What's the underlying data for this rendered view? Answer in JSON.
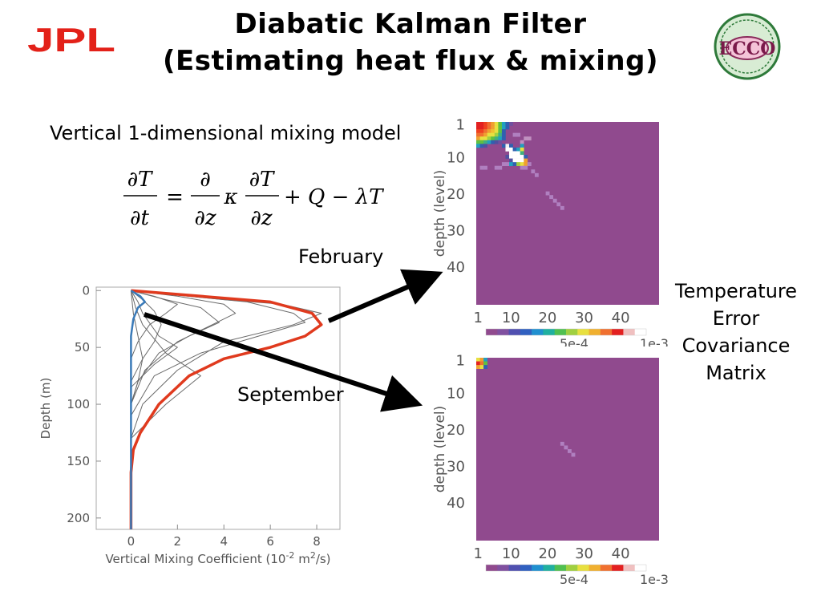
{
  "slide": {
    "title_line1": "Diabatic Kalman Filter",
    "title_line2": "(Estimating heat flux & mixing)",
    "subtitle": "Vertical 1-dimensional mixing model",
    "logo_left": "JPL",
    "logo_right": "ECCO",
    "equation": {
      "lhs_num": "∂T",
      "lhs_den": "∂t",
      "eq": "=",
      "op_num": "∂",
      "op_den": "∂z",
      "kappa": "κ",
      "rhs_num": "∂T",
      "rhs_den": "∂z",
      "tail": "+ Q − λT"
    },
    "feb_label": "February",
    "sep_label": "September",
    "cov_lines": [
      "Temperature",
      "Error",
      "Covariance",
      "Matrix"
    ],
    "colors": {
      "accent": "#e03a1e",
      "profile_blue": "#3a7ab8",
      "matrix_bg": "#904a8e",
      "jpl_red": "#e32119"
    }
  },
  "chart_data": [
    {
      "type": "line",
      "xlabel": "Vertical Mixing Coefficient (10",
      "xlabel_exp1": "-2",
      "xlabel_mid": " m",
      "xlabel_exp2": "2",
      "xlabel_end": "/s)",
      "ylabel": "Depth (m)",
      "xlim": [
        -1.5,
        9
      ],
      "ylim": [
        210,
        -3
      ],
      "xticks": [
        0,
        2,
        4,
        6,
        8
      ],
      "yticks": [
        0,
        50,
        100,
        150,
        200
      ],
      "series": [
        {
          "role": "highlight-red",
          "points": [
            [
              0,
              0
            ],
            [
              3,
              5
            ],
            [
              6,
              10
            ],
            [
              7.8,
              20
            ],
            [
              8.2,
              30
            ],
            [
              7.5,
              40
            ],
            [
              6,
              50
            ],
            [
              4,
              60
            ],
            [
              2.5,
              75
            ],
            [
              1.2,
              100
            ],
            [
              0.4,
              125
            ],
            [
              0.1,
              140
            ],
            [
              0,
              160
            ],
            [
              0,
              210
            ]
          ]
        },
        {
          "role": "highlight-blue",
          "points": [
            [
              0,
              0
            ],
            [
              0.4,
              5
            ],
            [
              0.6,
              10
            ],
            [
              0.3,
              15
            ],
            [
              0.1,
              25
            ],
            [
              0,
              40
            ],
            [
              0,
              210
            ]
          ]
        },
        {
          "role": "grey",
          "points": [
            [
              0,
              0
            ],
            [
              4,
              8
            ],
            [
              6.5,
              12
            ],
            [
              8.2,
              20
            ],
            [
              7,
              30
            ],
            [
              4,
              45
            ],
            [
              2,
              70
            ],
            [
              0.5,
              100
            ],
            [
              0,
              130
            ]
          ]
        },
        {
          "role": "grey",
          "points": [
            [
              0,
              0
            ],
            [
              2,
              5
            ],
            [
              4,
              12
            ],
            [
              4.5,
              20
            ],
            [
              3.5,
              30
            ],
            [
              2,
              45
            ],
            [
              0.6,
              70
            ],
            [
              0,
              100
            ]
          ]
        },
        {
          "role": "grey",
          "points": [
            [
              0,
              0
            ],
            [
              1,
              5
            ],
            [
              2,
              12
            ],
            [
              1.5,
              20
            ],
            [
              0.8,
              30
            ],
            [
              0.3,
              45
            ],
            [
              0,
              60
            ]
          ]
        },
        {
          "role": "grey",
          "points": [
            [
              0,
              0
            ],
            [
              1.5,
              8
            ],
            [
              3,
              15
            ],
            [
              3.8,
              28
            ],
            [
              2.5,
              40
            ],
            [
              1.2,
              55
            ],
            [
              0.3,
              80
            ],
            [
              0,
              100
            ]
          ]
        },
        {
          "role": "grey",
          "points": [
            [
              0,
              0
            ],
            [
              5,
              10
            ],
            [
              7,
              20
            ],
            [
              7.5,
              28
            ],
            [
              5.5,
              40
            ],
            [
              3,
              55
            ],
            [
              1,
              75
            ],
            [
              0,
              110
            ]
          ]
        },
        {
          "role": "grey",
          "points": [
            [
              0,
              0
            ],
            [
              0.5,
              8
            ],
            [
              1,
              18
            ],
            [
              1.3,
              30
            ],
            [
              1,
              45
            ],
            [
              0.5,
              60
            ],
            [
              0,
              80
            ]
          ]
        },
        {
          "role": "grey",
          "points": [
            [
              0,
              0
            ],
            [
              0.3,
              10
            ],
            [
              0.5,
              20
            ],
            [
              1.2,
              40
            ],
            [
              2,
              50
            ],
            [
              1,
              65
            ],
            [
              0,
              85
            ]
          ]
        },
        {
          "role": "grey",
          "points": [
            [
              0,
              0
            ],
            [
              0.2,
              15
            ],
            [
              0.5,
              30
            ],
            [
              1.5,
              55
            ],
            [
              3,
              75
            ],
            [
              1.5,
              100
            ],
            [
              0,
              130
            ]
          ]
        },
        {
          "role": "grey",
          "points": [
            [
              0,
              0
            ],
            [
              0.1,
              20
            ],
            [
              0.3,
              40
            ],
            [
              0.5,
              60
            ],
            [
              0.3,
              80
            ],
            [
              0,
              100
            ]
          ]
        }
      ]
    },
    {
      "type": "heatmap",
      "name": "February",
      "ylabel": "depth (level)",
      "ticks": [
        "1",
        "10",
        "20",
        "30",
        "40"
      ],
      "tick_levels": [
        1,
        10,
        20,
        30,
        40
      ],
      "levels": 50,
      "cbar_labels": [
        "5e-4",
        "1e-3"
      ],
      "background": "#904a8e",
      "cells": [
        [
          0,
          0,
          "#e32020"
        ],
        [
          0,
          1,
          "#e32020"
        ],
        [
          0,
          2,
          "#f04020"
        ],
        [
          0,
          3,
          "#f07030"
        ],
        [
          0,
          4,
          "#f0a030"
        ],
        [
          0,
          5,
          "#e8e040"
        ],
        [
          0,
          6,
          "#60c040"
        ],
        [
          0,
          7,
          "#20a0c0"
        ],
        [
          0,
          8,
          "#3060b0"
        ],
        [
          0,
          9,
          "#7050a0"
        ],
        [
          1,
          0,
          "#e32020"
        ],
        [
          1,
          1,
          "#e32020"
        ],
        [
          1,
          2,
          "#f04020"
        ],
        [
          1,
          3,
          "#f07030"
        ],
        [
          1,
          4,
          "#f0a030"
        ],
        [
          1,
          5,
          "#e8e040"
        ],
        [
          1,
          6,
          "#60c040"
        ],
        [
          1,
          7,
          "#20a0c0"
        ],
        [
          1,
          8,
          "#3060b0"
        ],
        [
          2,
          0,
          "#f04020"
        ],
        [
          2,
          1,
          "#f04020"
        ],
        [
          2,
          2,
          "#f07030"
        ],
        [
          2,
          3,
          "#f0a030"
        ],
        [
          2,
          4,
          "#f0c030"
        ],
        [
          2,
          5,
          "#e8e040"
        ],
        [
          2,
          6,
          "#60c040"
        ],
        [
          2,
          7,
          "#3060b0"
        ],
        [
          3,
          0,
          "#f07030"
        ],
        [
          3,
          1,
          "#f07030"
        ],
        [
          3,
          2,
          "#f0a030"
        ],
        [
          3,
          3,
          "#e8e040"
        ],
        [
          3,
          4,
          "#e8e040"
        ],
        [
          3,
          5,
          "#a0d040"
        ],
        [
          3,
          6,
          "#40b080"
        ],
        [
          3,
          7,
          "#3060b0"
        ],
        [
          3,
          10,
          "#b080c0"
        ],
        [
          3,
          11,
          "#b080c0"
        ],
        [
          4,
          0,
          "#f0a030"
        ],
        [
          4,
          1,
          "#e8e040"
        ],
        [
          4,
          2,
          "#e8e040"
        ],
        [
          4,
          3,
          "#a0d040"
        ],
        [
          4,
          4,
          "#60c040"
        ],
        [
          4,
          5,
          "#40b080"
        ],
        [
          4,
          6,
          "#20a0c0"
        ],
        [
          4,
          7,
          "#3060b0"
        ],
        [
          4,
          13,
          "#c090c0"
        ],
        [
          4,
          14,
          "#c090c0"
        ],
        [
          5,
          0,
          "#60c040"
        ],
        [
          5,
          1,
          "#60c040"
        ],
        [
          5,
          2,
          "#40b080"
        ],
        [
          5,
          3,
          "#20a0c0"
        ],
        [
          5,
          4,
          "#3060b0"
        ],
        [
          5,
          5,
          "#5050a0"
        ],
        [
          5,
          6,
          "#7050a0"
        ],
        [
          5,
          12,
          "#c090c0"
        ],
        [
          6,
          0,
          "#20a0c0"
        ],
        [
          6,
          1,
          "#3060b0"
        ],
        [
          6,
          2,
          "#5050a0"
        ],
        [
          6,
          7,
          "#3060b0"
        ],
        [
          6,
          8,
          "#f0f0f0"
        ],
        [
          6,
          9,
          "#3060b0"
        ],
        [
          6,
          12,
          "#20a0c0"
        ],
        [
          7,
          8,
          "#ffffff"
        ],
        [
          7,
          9,
          "#ffffff"
        ],
        [
          7,
          10,
          "#3060b0"
        ],
        [
          7,
          11,
          "#20a0c0"
        ],
        [
          7,
          12,
          "#e8e040"
        ],
        [
          8,
          9,
          "#ffffff"
        ],
        [
          8,
          10,
          "#ffffff"
        ],
        [
          8,
          11,
          "#ffffff"
        ],
        [
          8,
          12,
          "#40b080"
        ],
        [
          9,
          8,
          "#5050a0"
        ],
        [
          9,
          9,
          "#ffffff"
        ],
        [
          9,
          10,
          "#ffffff"
        ],
        [
          9,
          11,
          "#ffffff"
        ],
        [
          9,
          12,
          "#ffffff"
        ],
        [
          9,
          13,
          "#3060b0"
        ],
        [
          10,
          9,
          "#5050a0"
        ],
        [
          10,
          10,
          "#ffffff"
        ],
        [
          10,
          11,
          "#ffffff"
        ],
        [
          10,
          12,
          "#ffffff"
        ],
        [
          10,
          13,
          "#f0a030"
        ],
        [
          11,
          7,
          "#b080c0"
        ],
        [
          11,
          8,
          "#b080c0"
        ],
        [
          11,
          9,
          "#20a0c0"
        ],
        [
          11,
          10,
          "#3060b0"
        ],
        [
          11,
          11,
          "#a0d040"
        ],
        [
          11,
          12,
          "#e8e040"
        ],
        [
          11,
          13,
          "#f0a030"
        ],
        [
          11,
          14,
          "#b080c0"
        ],
        [
          12,
          1,
          "#b080c0"
        ],
        [
          12,
          2,
          "#b080c0"
        ],
        [
          12,
          5,
          "#b080c0"
        ],
        [
          12,
          6,
          "#b080c0"
        ],
        [
          12,
          12,
          "#b080c0"
        ],
        [
          12,
          13,
          "#b080c0"
        ],
        [
          13,
          15,
          "#b080c0"
        ],
        [
          14,
          16,
          "#b080c0"
        ],
        [
          19,
          19,
          "#b080c0"
        ],
        [
          20,
          20,
          "#b080c0"
        ],
        [
          21,
          21,
          "#b080c0"
        ],
        [
          22,
          22,
          "#b080c0"
        ],
        [
          23,
          23,
          "#b080c0"
        ]
      ]
    },
    {
      "type": "heatmap",
      "name": "September",
      "ylabel": "depth (level)",
      "ticks": [
        "1",
        "10",
        "20",
        "30",
        "40"
      ],
      "tick_levels": [
        1,
        10,
        20,
        30,
        40
      ],
      "levels": 50,
      "cbar_labels": [
        "5e-4",
        "1e-3"
      ],
      "background": "#904a8e",
      "cells": [
        [
          0,
          0,
          "#e8e040"
        ],
        [
          0,
          1,
          "#f0a030"
        ],
        [
          0,
          2,
          "#20a0c0"
        ],
        [
          1,
          0,
          "#e32020"
        ],
        [
          1,
          1,
          "#f07030"
        ],
        [
          1,
          2,
          "#60c040"
        ],
        [
          2,
          0,
          "#f0a030"
        ],
        [
          2,
          1,
          "#e8e040"
        ],
        [
          2,
          2,
          "#3060b0"
        ],
        [
          23,
          23,
          "#b080c0"
        ],
        [
          24,
          24,
          "#b080c0"
        ],
        [
          25,
          25,
          "#b080c0"
        ],
        [
          26,
          26,
          "#b080c0"
        ]
      ]
    }
  ]
}
